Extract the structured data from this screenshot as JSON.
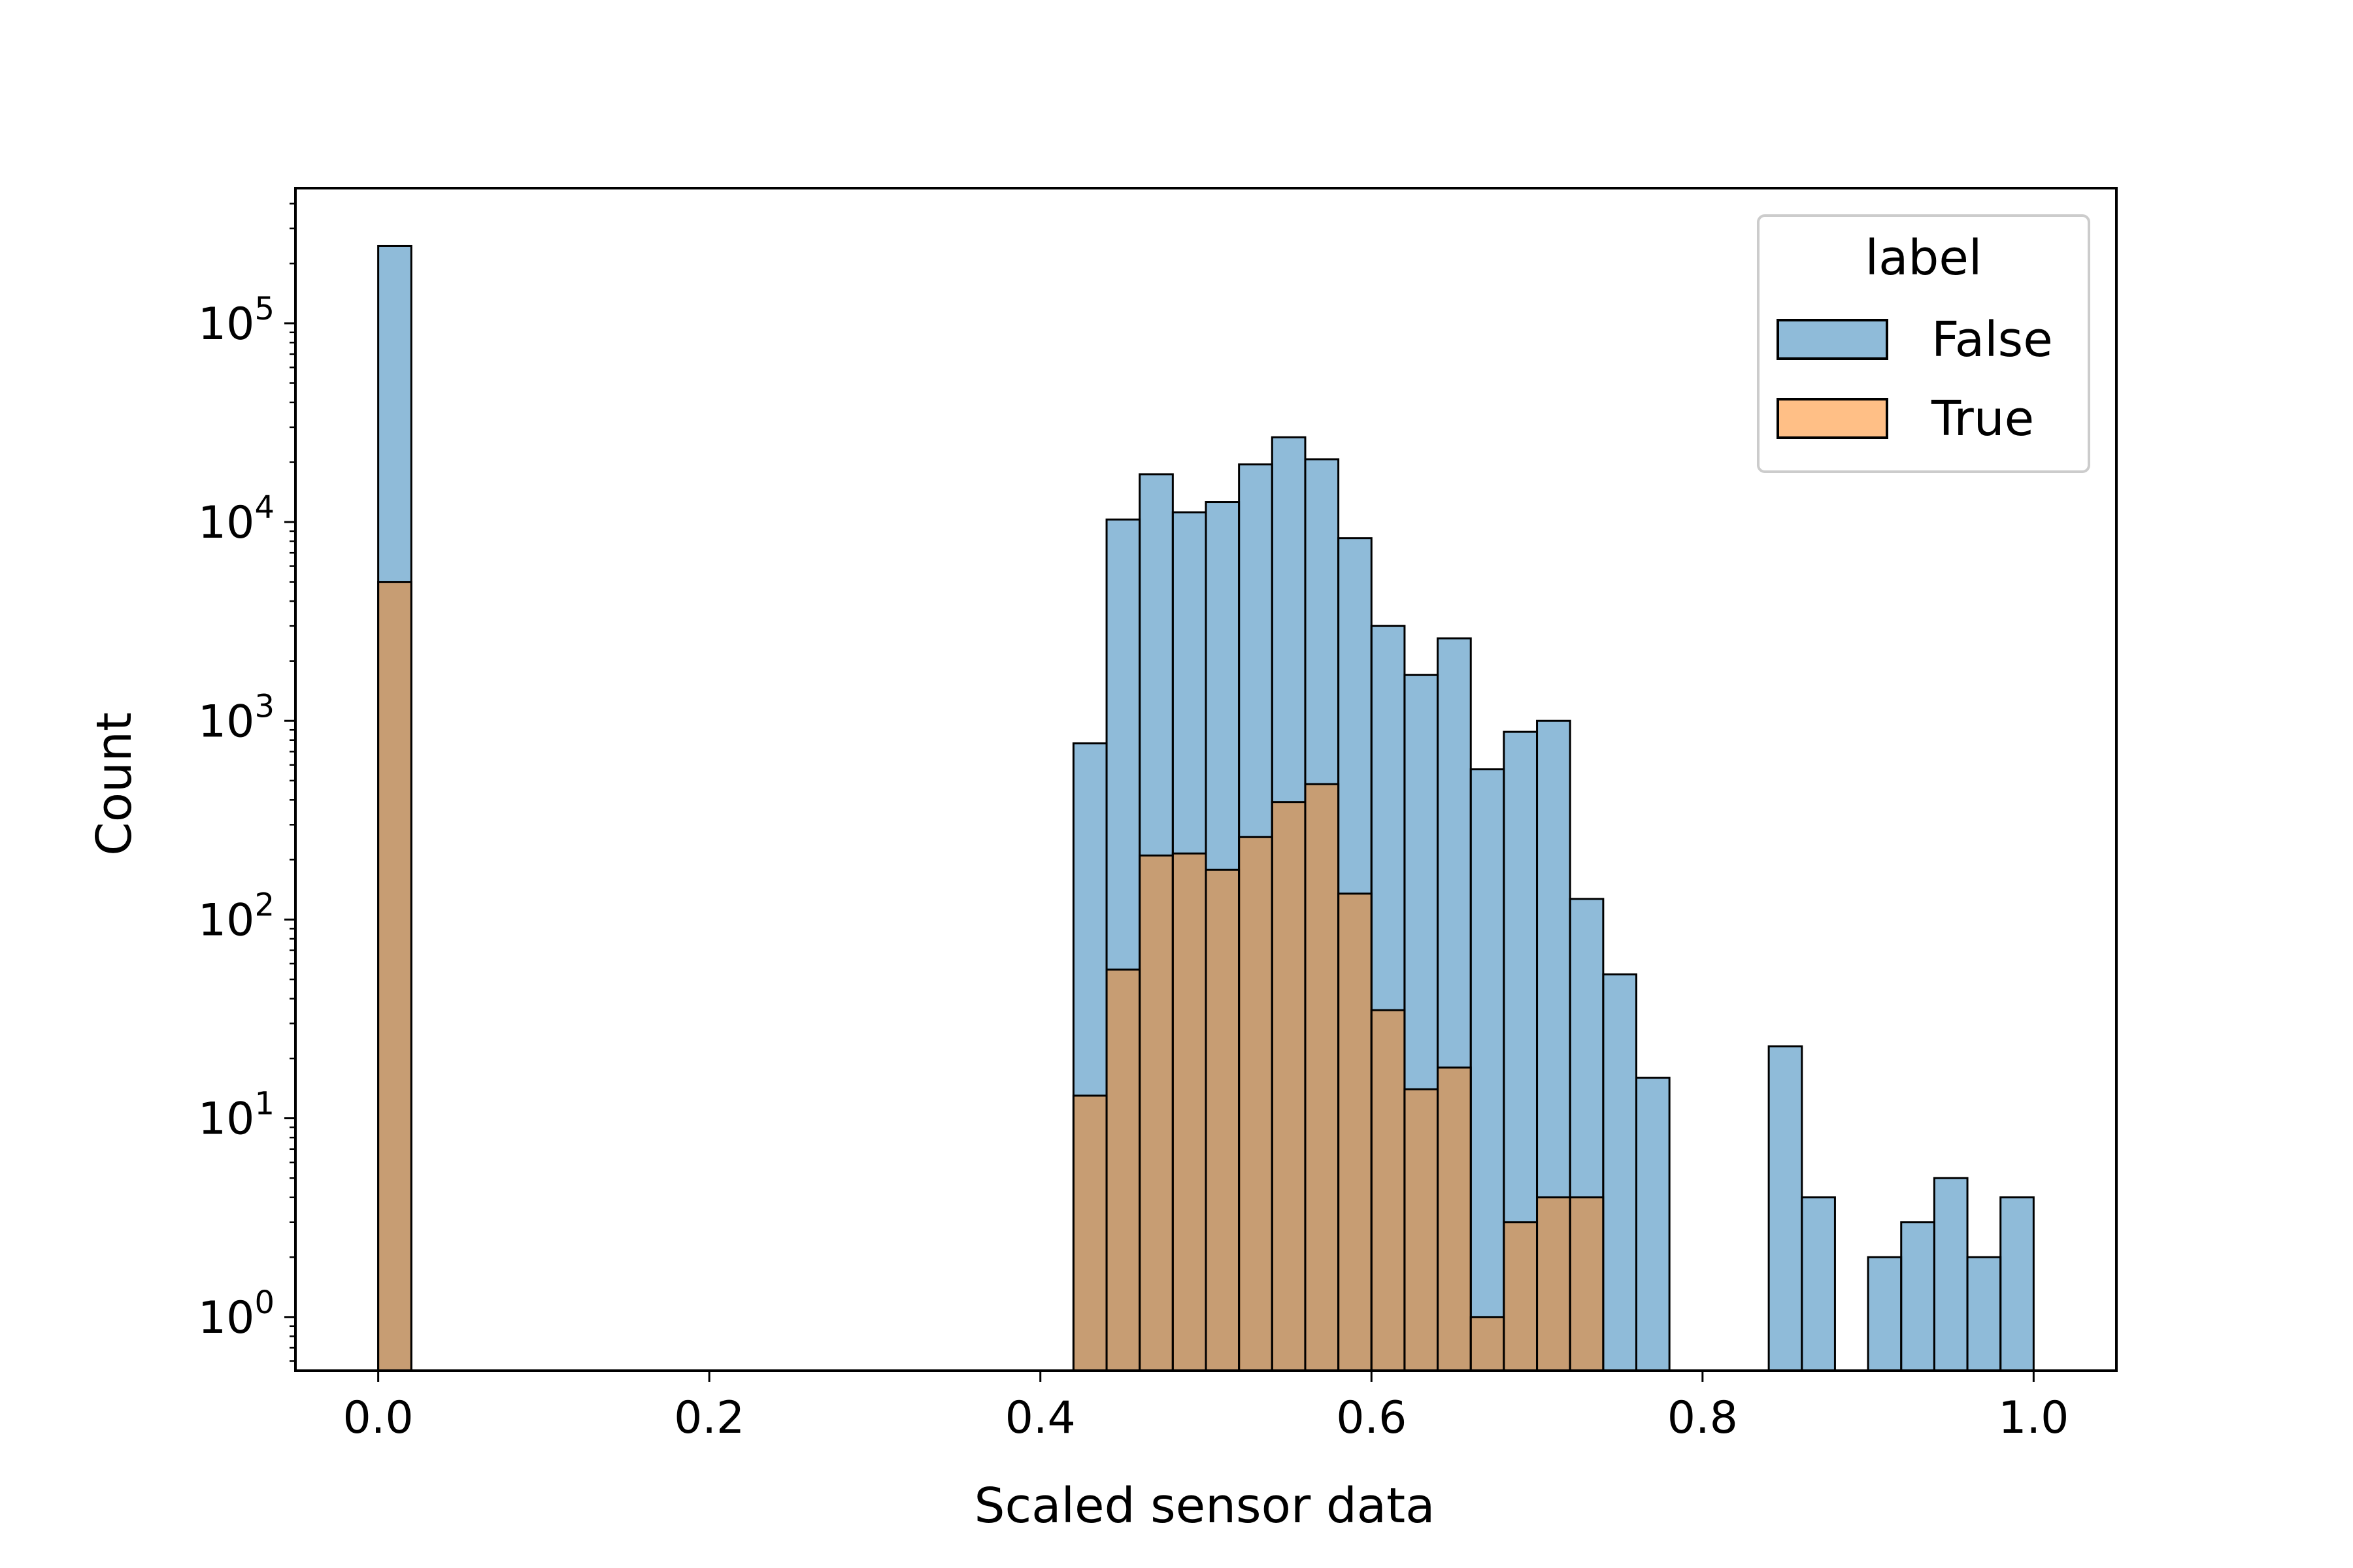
{
  "chart_data": {
    "type": "histogram",
    "title": "",
    "xlabel": "Scaled sensor data",
    "ylabel": "Count",
    "xlim": [
      -0.05,
      1.05
    ],
    "ylim_exponent": [
      -0.27,
      5.68
    ],
    "y_scale": "log",
    "bin_width": 0.02,
    "xticks": [
      {
        "value": 0.0,
        "label": "0.0"
      },
      {
        "value": 0.2,
        "label": "0.2"
      },
      {
        "value": 0.4,
        "label": "0.4"
      },
      {
        "value": 0.6,
        "label": "0.6"
      },
      {
        "value": 0.8,
        "label": "0.8"
      },
      {
        "value": 1.0,
        "label": "1.0"
      }
    ],
    "yticks": [
      {
        "exponent": 0,
        "base": "10",
        "power": "0"
      },
      {
        "exponent": 1,
        "base": "10",
        "power": "1"
      },
      {
        "exponent": 2,
        "base": "10",
        "power": "2"
      },
      {
        "exponent": 3,
        "base": "10",
        "power": "3"
      },
      {
        "exponent": 4,
        "base": "10",
        "power": "4"
      },
      {
        "exponent": 5,
        "base": "10",
        "power": "5"
      }
    ],
    "legend": {
      "title": "label",
      "position": "top-right",
      "entries": [
        {
          "name": "False",
          "color": "#1f77b4"
        },
        {
          "name": "True",
          "color": "#ff7f0e"
        }
      ]
    },
    "series": [
      {
        "name": "False",
        "color": "#1f77b4",
        "bins": [
          {
            "x0": 0.0,
            "count": 245000
          },
          {
            "x0": 0.42,
            "count": 770
          },
          {
            "x0": 0.44,
            "count": 10300
          },
          {
            "x0": 0.46,
            "count": 17400
          },
          {
            "x0": 0.48,
            "count": 11200
          },
          {
            "x0": 0.5,
            "count": 12600
          },
          {
            "x0": 0.52,
            "count": 19500
          },
          {
            "x0": 0.54,
            "count": 26700
          },
          {
            "x0": 0.56,
            "count": 20700
          },
          {
            "x0": 0.58,
            "count": 8300
          },
          {
            "x0": 0.6,
            "count": 3000
          },
          {
            "x0": 0.62,
            "count": 1700
          },
          {
            "x0": 0.64,
            "count": 2600
          },
          {
            "x0": 0.66,
            "count": 570
          },
          {
            "x0": 0.68,
            "count": 880
          },
          {
            "x0": 0.7,
            "count": 1000
          },
          {
            "x0": 0.72,
            "count": 127
          },
          {
            "x0": 0.74,
            "count": 53
          },
          {
            "x0": 0.76,
            "count": 16
          },
          {
            "x0": 0.84,
            "count": 23
          },
          {
            "x0": 0.86,
            "count": 4
          },
          {
            "x0": 0.9,
            "count": 2
          },
          {
            "x0": 0.92,
            "count": 3
          },
          {
            "x0": 0.94,
            "count": 5
          },
          {
            "x0": 0.96,
            "count": 2
          },
          {
            "x0": 0.98,
            "count": 4
          }
        ]
      },
      {
        "name": "True",
        "color": "#ff7f0e",
        "bins": [
          {
            "x0": 0.0,
            "count": 5000
          },
          {
            "x0": 0.42,
            "count": 13
          },
          {
            "x0": 0.44,
            "count": 56
          },
          {
            "x0": 0.46,
            "count": 210
          },
          {
            "x0": 0.48,
            "count": 215
          },
          {
            "x0": 0.5,
            "count": 178
          },
          {
            "x0": 0.52,
            "count": 260
          },
          {
            "x0": 0.54,
            "count": 390
          },
          {
            "x0": 0.56,
            "count": 480
          },
          {
            "x0": 0.58,
            "count": 135
          },
          {
            "x0": 0.6,
            "count": 35
          },
          {
            "x0": 0.62,
            "count": 14
          },
          {
            "x0": 0.64,
            "count": 18
          },
          {
            "x0": 0.66,
            "count": 1
          },
          {
            "x0": 0.68,
            "count": 3
          },
          {
            "x0": 0.7,
            "count": 4
          },
          {
            "x0": 0.72,
            "count": 4
          }
        ]
      }
    ]
  }
}
